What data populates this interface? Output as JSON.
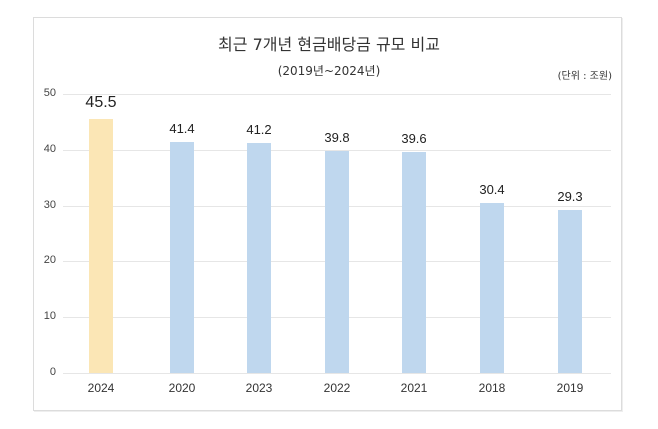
{
  "chart_data": {
    "type": "bar",
    "title": "최근 7개년 현금배당금 규모 비교",
    "subtitle": "(2019년~2024년)",
    "unit_label": "(단위 : 조원)",
    "xlabel": "",
    "ylabel": "",
    "ylim": [
      0,
      50
    ],
    "yticks": [
      "0",
      "10",
      "20",
      "30",
      "40",
      "50"
    ],
    "grid": true,
    "legend": "none",
    "categories": [
      "2024",
      "2020",
      "2023",
      "2022",
      "2021",
      "2018",
      "2019"
    ],
    "values": [
      45.5,
      41.4,
      41.2,
      39.8,
      39.6,
      30.4,
      29.3
    ],
    "value_labels": [
      "45.5",
      "41.4",
      "41.2",
      "39.8",
      "39.6",
      "30.4",
      "29.3"
    ],
    "colors": {
      "highlight": "#fbe6b5",
      "default": "#bfd7ee"
    }
  }
}
